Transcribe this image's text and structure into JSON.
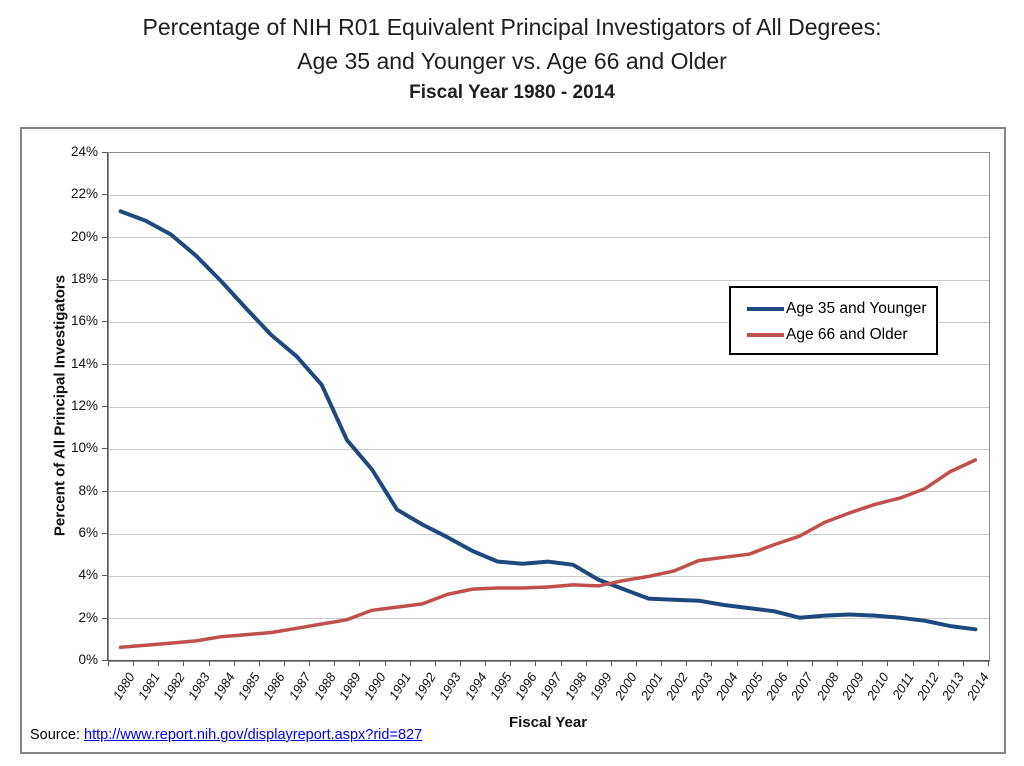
{
  "title": {
    "line1": "Percentage of NIH R01 Equivalent Principal Investigators of All Degrees:",
    "line2": "Age 35 and Younger vs. Age 66 and Older",
    "line3": "Fiscal Year 1980 - 2014"
  },
  "source": {
    "prefix": "Source:",
    "url": "http://www.report.nih.gov/displayreport.aspx?rid=827"
  },
  "chart_data": {
    "type": "line",
    "xlabel": "Fiscal Year",
    "ylabel": "Percent of All Principal Investigators",
    "ylim": [
      0,
      24
    ],
    "ytick_step": 2,
    "ytick_suffix": "%",
    "grid": true,
    "legend_position": "inside-upper-right",
    "x": [
      1980,
      1981,
      1982,
      1983,
      1984,
      1985,
      1986,
      1987,
      1988,
      1989,
      1990,
      1991,
      1992,
      1993,
      1994,
      1995,
      1996,
      1997,
      1998,
      1999,
      2000,
      2001,
      2002,
      2003,
      2004,
      2005,
      2006,
      2007,
      2008,
      2009,
      2010,
      2011,
      2012,
      2013,
      2014
    ],
    "series": [
      {
        "name": "Age 35 and Younger",
        "color": "#1F497D",
        "values": [
          21.2,
          20.75,
          20.1,
          19.1,
          17.9,
          16.6,
          15.35,
          14.35,
          13.0,
          10.4,
          9.0,
          7.1,
          6.4,
          5.8,
          5.15,
          4.65,
          4.55,
          4.65,
          4.5,
          3.8,
          3.35,
          2.9,
          2.85,
          2.8,
          2.6,
          2.45,
          2.3,
          2.0,
          2.1,
          2.15,
          2.1,
          2.0,
          1.85,
          1.6,
          1.45
        ]
      },
      {
        "name": "Age 66 and Older",
        "color": "#C0504D",
        "values": [
          0.6,
          0.7,
          0.8,
          0.9,
          1.1,
          1.2,
          1.3,
          1.5,
          1.7,
          1.9,
          2.35,
          2.5,
          2.65,
          3.1,
          3.35,
          3.4,
          3.4,
          3.45,
          3.55,
          3.5,
          3.75,
          3.95,
          4.2,
          4.7,
          4.85,
          5.0,
          5.45,
          5.85,
          6.5,
          6.95,
          7.35,
          7.65,
          8.1,
          8.9,
          9.45
        ]
      }
    ]
  }
}
